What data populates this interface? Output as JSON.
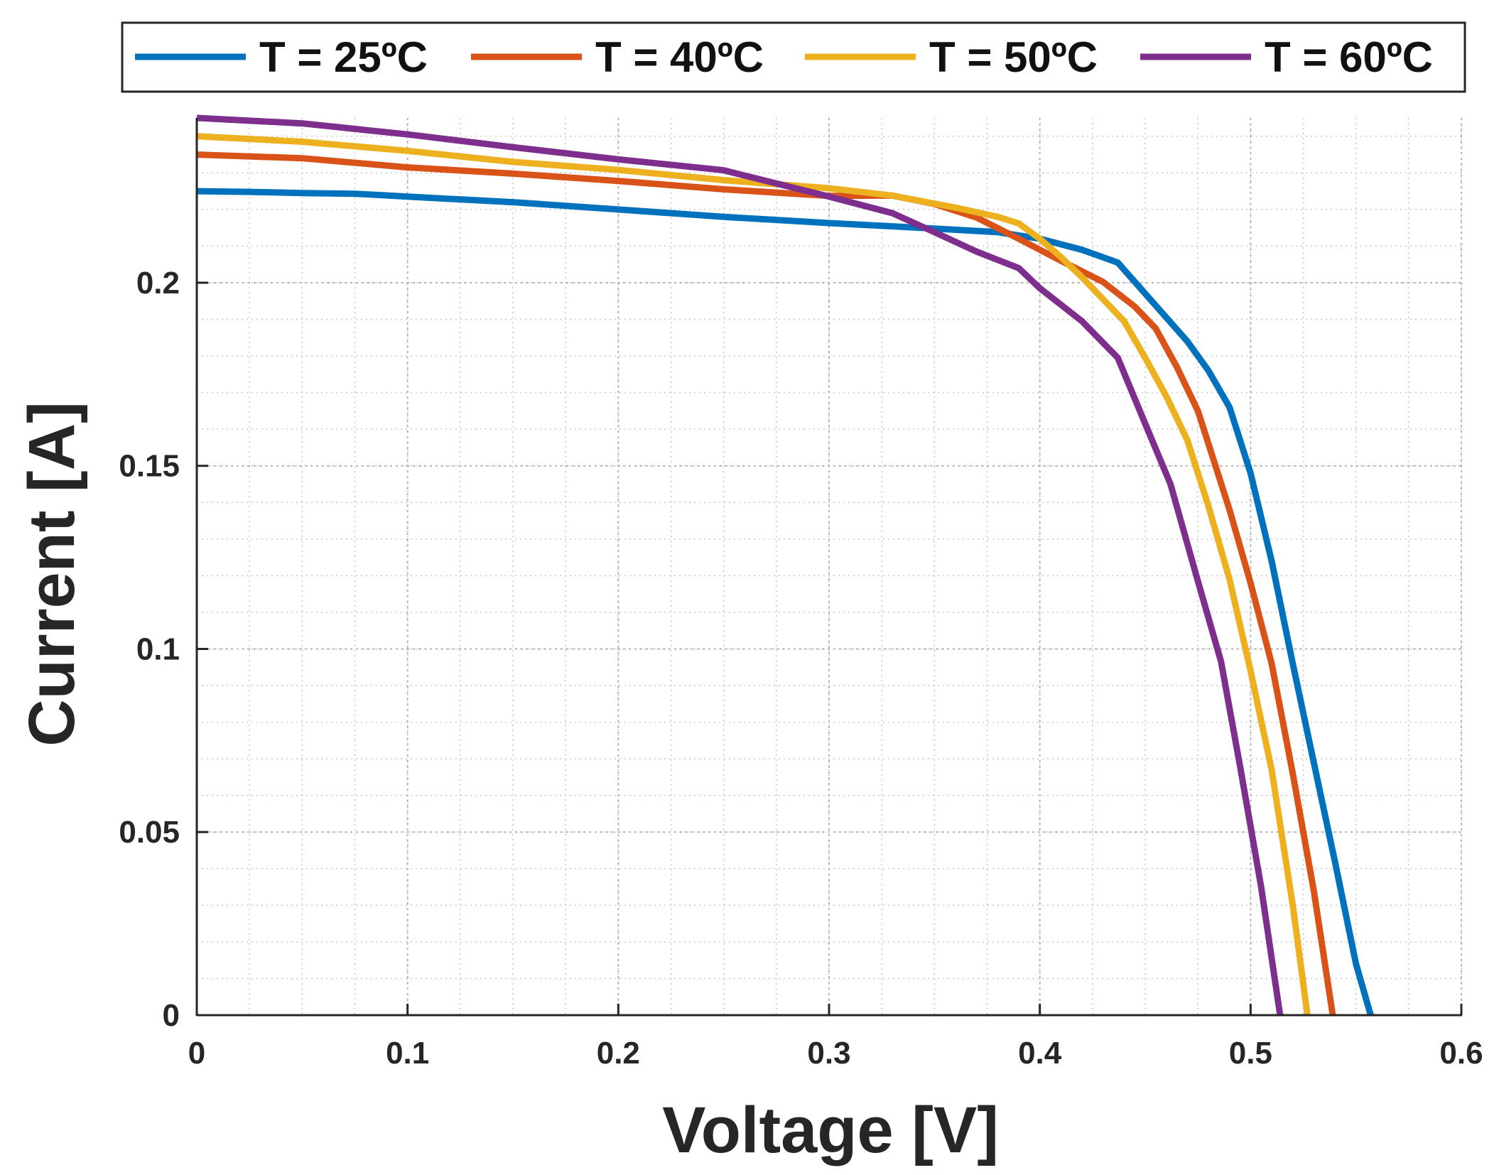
{
  "chart_data": {
    "type": "line",
    "title": "",
    "xlabel": "Voltage [V]",
    "ylabel": "Current [A]",
    "xlim": [
      0,
      0.6
    ],
    "ylim": [
      0,
      0.245
    ],
    "xticks": [
      0,
      0.1,
      0.2,
      0.3,
      0.4,
      0.5,
      0.6
    ],
    "xtick_labels": [
      "0",
      "0.1",
      "0.2",
      "0.3",
      "0.4",
      "0.5",
      "0.6"
    ],
    "yticks": [
      0,
      0.05,
      0.1,
      0.15,
      0.2
    ],
    "ytick_labels": [
      "0",
      "0.05",
      "0.1",
      "0.15",
      "0.2"
    ],
    "grid": true,
    "minor_grid": true,
    "legend_position": "top",
    "series": [
      {
        "name": "T = 25ºC",
        "color": "#0072BD",
        "x": [
          0,
          0.025,
          0.05,
          0.075,
          0.1,
          0.15,
          0.2,
          0.25,
          0.3,
          0.35,
          0.38,
          0.4,
          0.42,
          0.437,
          0.45,
          0.46,
          0.47,
          0.48,
          0.49,
          0.5,
          0.51,
          0.52,
          0.53,
          0.54,
          0.55,
          0.557
        ],
        "y": [
          0.225,
          0.2248,
          0.2245,
          0.2243,
          0.2235,
          0.222,
          0.22,
          0.218,
          0.2163,
          0.2148,
          0.2138,
          0.212,
          0.209,
          0.2055,
          0.197,
          0.1905,
          0.184,
          0.176,
          0.166,
          0.148,
          0.124,
          0.096,
          0.069,
          0.042,
          0.014,
          0
        ]
      },
      {
        "name": "T = 40ºC",
        "color": "#D95319",
        "x": [
          0,
          0.05,
          0.1,
          0.15,
          0.2,
          0.25,
          0.3,
          0.33,
          0.35,
          0.37,
          0.39,
          0.41,
          0.43,
          0.445,
          0.455,
          0.465,
          0.475,
          0.49,
          0.5,
          0.51,
          0.52,
          0.53,
          0.539
        ],
        "y": [
          0.235,
          0.234,
          0.2315,
          0.2298,
          0.2278,
          0.2255,
          0.2237,
          0.2238,
          0.2215,
          0.2178,
          0.212,
          0.206,
          0.2002,
          0.1935,
          0.1875,
          0.177,
          0.165,
          0.138,
          0.118,
          0.096,
          0.066,
          0.034,
          0
        ]
      },
      {
        "name": "T = 50ºC",
        "color": "#EDB120",
        "x": [
          0,
          0.05,
          0.1,
          0.15,
          0.2,
          0.25,
          0.3,
          0.33,
          0.36,
          0.38,
          0.39,
          0.4,
          0.41,
          0.42,
          0.43,
          0.44,
          0.45,
          0.46,
          0.47,
          0.48,
          0.49,
          0.5,
          0.51,
          0.52,
          0.527
        ],
        "y": [
          0.24,
          0.2385,
          0.236,
          0.233,
          0.2308,
          0.228,
          0.2258,
          0.2238,
          0.2205,
          0.218,
          0.2162,
          0.212,
          0.207,
          0.2015,
          0.1955,
          0.1895,
          0.1795,
          0.169,
          0.157,
          0.139,
          0.119,
          0.094,
          0.067,
          0.03,
          0
        ]
      },
      {
        "name": "T = 60ºC",
        "color": "#7E2F8E",
        "x": [
          0,
          0.05,
          0.1,
          0.15,
          0.2,
          0.25,
          0.3,
          0.33,
          0.35,
          0.37,
          0.39,
          0.4,
          0.42,
          0.437,
          0.45,
          0.462,
          0.475,
          0.486,
          0.495,
          0.505,
          0.514
        ],
        "y": [
          0.245,
          0.2435,
          0.2405,
          0.237,
          0.2337,
          0.2307,
          0.2235,
          0.219,
          0.2138,
          0.2085,
          0.204,
          0.1985,
          0.1895,
          0.1795,
          0.1615,
          0.145,
          0.1185,
          0.0965,
          0.068,
          0.035,
          0
        ]
      }
    ]
  }
}
